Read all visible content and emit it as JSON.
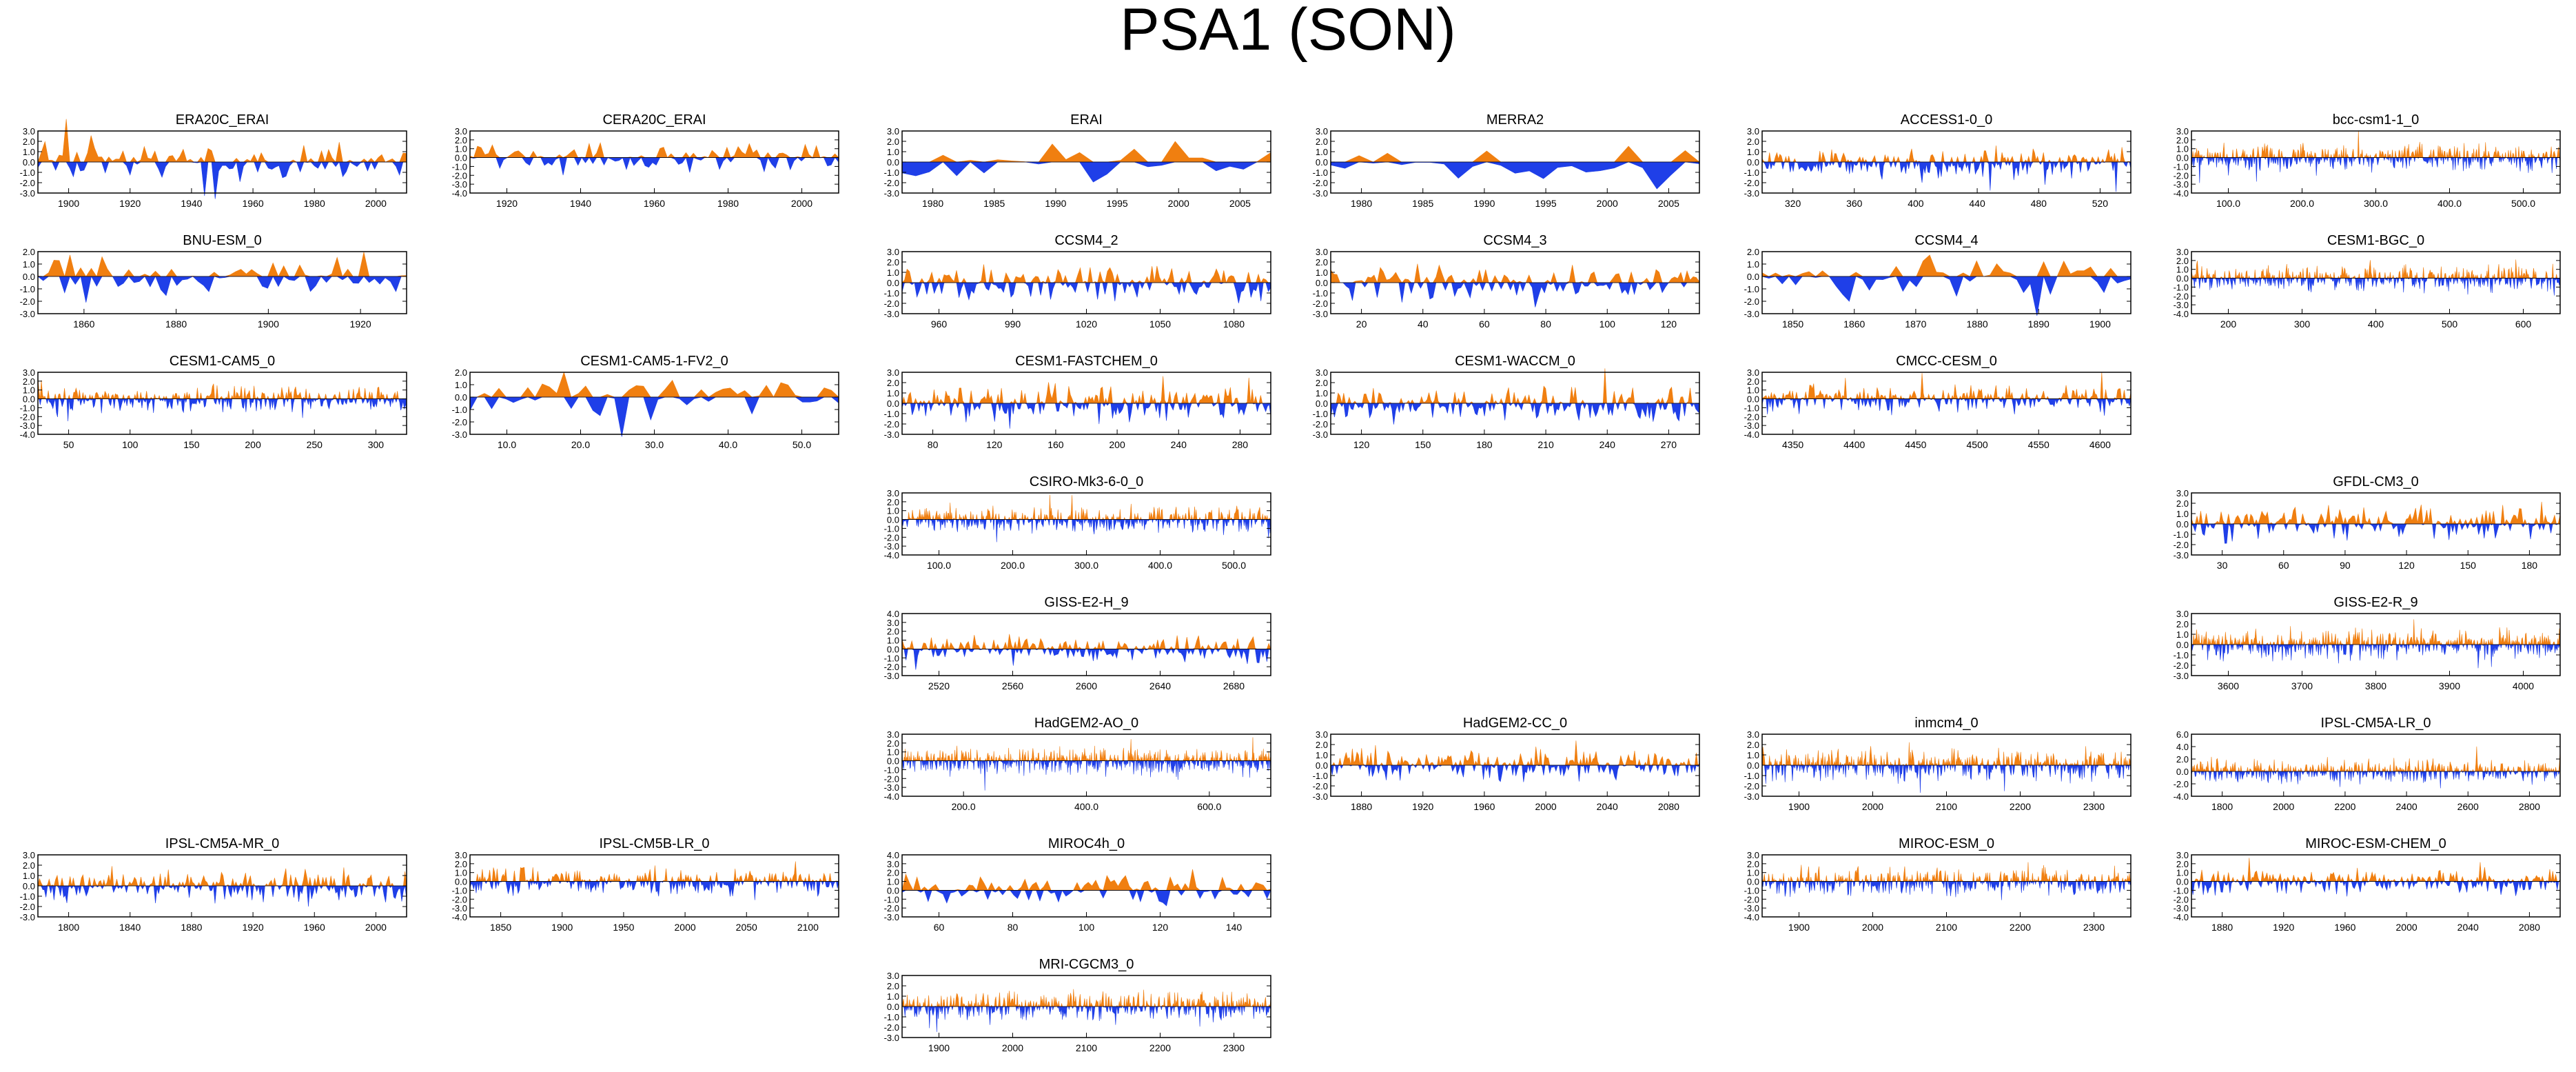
{
  "title": "PSA1 (SON)",
  "colors": {
    "positive": "#f07f10",
    "negative": "#1f3fe8",
    "axis": "#000000"
  },
  "chart_data": [
    {
      "type": "area",
      "title": "ERA20C_ERAI",
      "xticks": [
        "1900",
        "1920",
        "1940",
        "1960",
        "1980",
        "2000"
      ],
      "yticks": [
        "3.0",
        "2.0",
        "1.0",
        "0.0",
        "-1.0",
        "-2.0",
        "-3.0"
      ],
      "ylim": [
        -3,
        3
      ],
      "n": 105,
      "seed": 11,
      "amp": 1.2
    },
    {
      "type": "area",
      "title": "CERA20C_ERAI",
      "xticks": [
        "1920",
        "1940",
        "1960",
        "1980",
        "2000"
      ],
      "yticks": [
        "3.0",
        "2.0",
        "1.0",
        "0.0",
        "-1.0",
        "-2.0",
        "-3.0",
        "-4.0"
      ],
      "ylim": [
        -4,
        3
      ],
      "n": 100,
      "seed": 12,
      "amp": 1.1
    },
    {
      "type": "area",
      "title": "ERAI",
      "xticks": [
        "1980",
        "1985",
        "1990",
        "1995",
        "2000",
        "2005"
      ],
      "yticks": [
        "3.0",
        "2.0",
        "1.0",
        "0.0",
        "-1.0",
        "-2.0",
        "-3.0"
      ],
      "ylim": [
        -3,
        3
      ],
      "n": 28,
      "seed": 13,
      "amp": 1.4
    },
    {
      "type": "area",
      "title": "MERRA2",
      "xticks": [
        "1980",
        "1985",
        "1990",
        "1995",
        "2000",
        "2005"
      ],
      "yticks": [
        "3.0",
        "2.0",
        "1.0",
        "0.0",
        "-1.0",
        "-2.0",
        "-3.0"
      ],
      "ylim": [
        -3,
        3
      ],
      "n": 27,
      "seed": 14,
      "amp": 1.4
    },
    {
      "type": "area",
      "title": "ACCESS1-0_0",
      "xticks": [
        "320",
        "360",
        "400",
        "440",
        "480",
        "520"
      ],
      "yticks": [
        "3.0",
        "2.0",
        "1.0",
        "0.0",
        "-1.0",
        "-2.0",
        "-3.0"
      ],
      "ylim": [
        -3,
        3
      ],
      "n": 250,
      "seed": 15,
      "amp": 1.0
    },
    {
      "type": "area",
      "title": "bcc-csm1-1_0",
      "xticks": [
        "100.0",
        "200.0",
        "300.0",
        "400.0",
        "500.0"
      ],
      "yticks": [
        "3.0",
        "2.0",
        "1.0",
        "0.0",
        "-1.0",
        "-2.0",
        "-3.0",
        "-4.0"
      ],
      "ylim": [
        -4,
        3
      ],
      "n": 500,
      "seed": 16,
      "amp": 1.0
    },
    {
      "type": "area",
      "title": "BNU-ESM_0",
      "xticks": [
        "1860",
        "1880",
        "1900",
        "1920"
      ],
      "yticks": [
        "2.0",
        "1.0",
        "0.0",
        "-1.0",
        "-2.0",
        "-3.0"
      ],
      "ylim": [
        -3,
        2
      ],
      "n": 70,
      "seed": 17,
      "amp": 1.2
    },
    null,
    {
      "type": "area",
      "title": "CCSM4_2",
      "xticks": [
        "960",
        "990",
        "1020",
        "1050",
        "1080"
      ],
      "yticks": [
        "3.0",
        "2.0",
        "1.0",
        "0.0",
        "-1.0",
        "-2.0",
        "-3.0"
      ],
      "ylim": [
        -3,
        3
      ],
      "n": 150,
      "seed": 18,
      "amp": 1.1
    },
    {
      "type": "area",
      "title": "CCSM4_3",
      "xticks": [
        "20",
        "40",
        "60",
        "80",
        "100",
        "120"
      ],
      "yticks": [
        "3.0",
        "2.0",
        "1.0",
        "0.0",
        "-1.0",
        "-2.0",
        "-3.0"
      ],
      "ylim": [
        -3,
        3
      ],
      "n": 120,
      "seed": 19,
      "amp": 1.1
    },
    {
      "type": "area",
      "title": "CCSM4_4",
      "xticks": [
        "1850",
        "1860",
        "1870",
        "1880",
        "1890",
        "1900"
      ],
      "yticks": [
        "2.0",
        "1.0",
        "0.0",
        "-1.0",
        "-2.0",
        "-3.0"
      ],
      "ylim": [
        -3,
        2
      ],
      "n": 56,
      "seed": 20,
      "amp": 1.1
    },
    {
      "type": "area",
      "title": "CESM1-BGC_0",
      "xticks": [
        "200",
        "300",
        "400",
        "500",
        "600"
      ],
      "yticks": [
        "3.0",
        "2.0",
        "1.0",
        "0.0",
        "-1.0",
        "-2.0",
        "-3.0",
        "-4.0"
      ],
      "ylim": [
        -4,
        3
      ],
      "n": 500,
      "seed": 21,
      "amp": 1.0
    },
    {
      "type": "area",
      "title": "CESM1-CAM5_0",
      "xticks": [
        "50",
        "100",
        "150",
        "200",
        "250",
        "300"
      ],
      "yticks": [
        "3.0",
        "2.0",
        "1.0",
        "0.0",
        "-1.0",
        "-2.0",
        "-3.0",
        "-4.0"
      ],
      "ylim": [
        -4,
        3
      ],
      "n": 320,
      "seed": 22,
      "amp": 1.0
    },
    {
      "type": "area",
      "title": "CESM1-CAM5-1-FV2_0",
      "xticks": [
        "10.0",
        "20.0",
        "30.0",
        "40.0",
        "50.0"
      ],
      "yticks": [
        "2.0",
        "1.0",
        "0.0",
        "-1.0",
        "-2.0",
        "-3.0"
      ],
      "ylim": [
        -3,
        2
      ],
      "n": 52,
      "seed": 23,
      "amp": 1.2
    },
    {
      "type": "area",
      "title": "CESM1-FASTCHEM_0",
      "xticks": [
        "80",
        "120",
        "160",
        "200",
        "240",
        "280"
      ],
      "yticks": [
        "3.0",
        "2.0",
        "1.0",
        "0.0",
        "-1.0",
        "-2.0",
        "-3.0"
      ],
      "ylim": [
        -3,
        3
      ],
      "n": 220,
      "seed": 24,
      "amp": 1.1
    },
    {
      "type": "area",
      "title": "CESM1-WACCM_0",
      "xticks": [
        "120",
        "150",
        "180",
        "210",
        "240",
        "270"
      ],
      "yticks": [
        "3.0",
        "2.0",
        "1.0",
        "0.0",
        "-1.0",
        "-2.0",
        "-3.0"
      ],
      "ylim": [
        -3,
        3
      ],
      "n": 200,
      "seed": 25,
      "amp": 1.1
    },
    {
      "type": "area",
      "title": "CMCC-CESM_0",
      "xticks": [
        "4350",
        "4400",
        "4450",
        "4500",
        "4550",
        "4600"
      ],
      "yticks": [
        "3.0",
        "2.0",
        "1.0",
        "0.0",
        "-1.0",
        "-2.0",
        "-3.0",
        "-4.0"
      ],
      "ylim": [
        -4,
        3
      ],
      "n": 280,
      "seed": 26,
      "amp": 1.0
    },
    null,
    null,
    null,
    {
      "type": "area",
      "title": "CSIRO-Mk3-6-0_0",
      "xticks": [
        "100.0",
        "200.0",
        "300.0",
        "400.0",
        "500.0"
      ],
      "yticks": [
        "3.0",
        "2.0",
        "1.0",
        "0.0",
        "-1.0",
        "-2.0",
        "-3.0",
        "-4.0"
      ],
      "ylim": [
        -4,
        3
      ],
      "n": 500,
      "seed": 27,
      "amp": 1.0
    },
    null,
    null,
    {
      "type": "area",
      "title": "GFDL-CM3_0",
      "xticks": [
        "30",
        "60",
        "90",
        "120",
        "150",
        "180"
      ],
      "yticks": [
        "3.0",
        "2.0",
        "1.0",
        "0.0",
        "-1.0",
        "-2.0",
        "-3.0"
      ],
      "ylim": [
        -3,
        3
      ],
      "n": 200,
      "seed": 28,
      "amp": 1.1
    },
    null,
    null,
    {
      "type": "area",
      "title": "GISS-E2-H_9",
      "xticks": [
        "2520",
        "2560",
        "2600",
        "2640",
        "2680"
      ],
      "yticks": [
        "4.0",
        "3.0",
        "2.0",
        "1.0",
        "0.0",
        "-1.0",
        "-2.0",
        "-3.0"
      ],
      "ylim": [
        -3,
        4
      ],
      "n": 190,
      "seed": 29,
      "amp": 1.1
    },
    null,
    null,
    {
      "type": "area",
      "title": "GISS-E2-R_9",
      "xticks": [
        "3600",
        "3700",
        "3800",
        "3900",
        "4000"
      ],
      "yticks": [
        "3.0",
        "2.0",
        "1.0",
        "0.0",
        "-1.0",
        "-2.0",
        "-3.0"
      ],
      "ylim": [
        -3,
        3
      ],
      "n": 500,
      "seed": 30,
      "amp": 1.0
    },
    null,
    null,
    {
      "type": "area",
      "title": "HadGEM2-AO_0",
      "xticks": [
        "200.0",
        "400.0",
        "600.0"
      ],
      "yticks": [
        "3.0",
        "2.0",
        "1.0",
        "0.0",
        "-1.0",
        "-2.0",
        "-3.0",
        "-4.0"
      ],
      "ylim": [
        -4,
        3
      ],
      "n": 700,
      "seed": 31,
      "amp": 1.0
    },
    {
      "type": "area",
      "title": "HadGEM2-CC_0",
      "xticks": [
        "1880",
        "1920",
        "1960",
        "2000",
        "2040",
        "2080"
      ],
      "yticks": [
        "3.0",
        "2.0",
        "1.0",
        "0.0",
        "-1.0",
        "-2.0",
        "-3.0"
      ],
      "ylim": [
        -3,
        3
      ],
      "n": 240,
      "seed": 32,
      "amp": 1.0
    },
    {
      "type": "area",
      "title": "inmcm4_0",
      "xticks": [
        "1900",
        "2000",
        "2100",
        "2200",
        "2300"
      ],
      "yticks": [
        "3.0",
        "2.0",
        "1.0",
        "0.0",
        "-1.0",
        "-2.0",
        "-3.0"
      ],
      "ylim": [
        -3,
        3
      ],
      "n": 500,
      "seed": 33,
      "amp": 1.0
    },
    {
      "type": "area",
      "title": "IPSL-CM5A-LR_0",
      "xticks": [
        "1800",
        "2000",
        "2200",
        "2400",
        "2600",
        "2800"
      ],
      "yticks": [
        "6.0",
        "4.0",
        "2.0",
        "0.0",
        "-2.0",
        "-4.0"
      ],
      "ylim": [
        -4,
        6
      ],
      "n": 500,
      "seed": 34,
      "amp": 1.2
    },
    {
      "type": "area",
      "title": "IPSL-CM5A-MR_0",
      "xticks": [
        "1800",
        "1840",
        "1880",
        "1920",
        "1960",
        "2000"
      ],
      "yticks": [
        "3.0",
        "2.0",
        "1.0",
        "0.0",
        "-1.0",
        "-2.0",
        "-3.0"
      ],
      "ylim": [
        -3,
        3
      ],
      "n": 230,
      "seed": 35,
      "amp": 1.1
    },
    {
      "type": "area",
      "title": "IPSL-CM5B-LR_0",
      "xticks": [
        "1850",
        "1900",
        "1950",
        "2000",
        "2050",
        "2100"
      ],
      "yticks": [
        "3.0",
        "2.0",
        "1.0",
        "0.0",
        "-1.0",
        "-2.0",
        "-3.0",
        "-4.0"
      ],
      "ylim": [
        -4,
        3
      ],
      "n": 300,
      "seed": 36,
      "amp": 1.0
    },
    {
      "type": "area",
      "title": "MIROC4h_0",
      "xticks": [
        "60",
        "80",
        "100",
        "120",
        "140"
      ],
      "yticks": [
        "4.0",
        "3.0",
        "2.0",
        "1.0",
        "0.0",
        "-1.0",
        "-2.0",
        "-3.0"
      ],
      "ylim": [
        -3,
        4
      ],
      "n": 100,
      "seed": 37,
      "amp": 1.1
    },
    null,
    {
      "type": "area",
      "title": "MIROC-ESM_0",
      "xticks": [
        "1900",
        "2000",
        "2100",
        "2200",
        "2300"
      ],
      "yticks": [
        "3.0",
        "2.0",
        "1.0",
        "0.0",
        "-1.0",
        "-2.0",
        "-3.0",
        "-4.0"
      ],
      "ylim": [
        -4,
        3
      ],
      "n": 500,
      "seed": 38,
      "amp": 1.0
    },
    {
      "type": "area",
      "title": "MIROC-ESM-CHEM_0",
      "xticks": [
        "1880",
        "1920",
        "1960",
        "2000",
        "2040",
        "2080"
      ],
      "yticks": [
        "3.0",
        "2.0",
        "1.0",
        "0.0",
        "-1.0",
        "-2.0",
        "-3.0",
        "-4.0"
      ],
      "ylim": [
        -4,
        3
      ],
      "n": 250,
      "seed": 39,
      "amp": 1.0
    },
    null,
    null,
    {
      "type": "area",
      "title": "MRI-CGCM3_0",
      "xticks": [
        "1900",
        "2000",
        "2100",
        "2200",
        "2300"
      ],
      "yticks": [
        "3.0",
        "2.0",
        "1.0",
        "0.0",
        "-1.0",
        "-2.0",
        "-3.0"
      ],
      "ylim": [
        -3,
        3
      ],
      "n": 500,
      "seed": 40,
      "amp": 1.0
    },
    null,
    null
  ]
}
